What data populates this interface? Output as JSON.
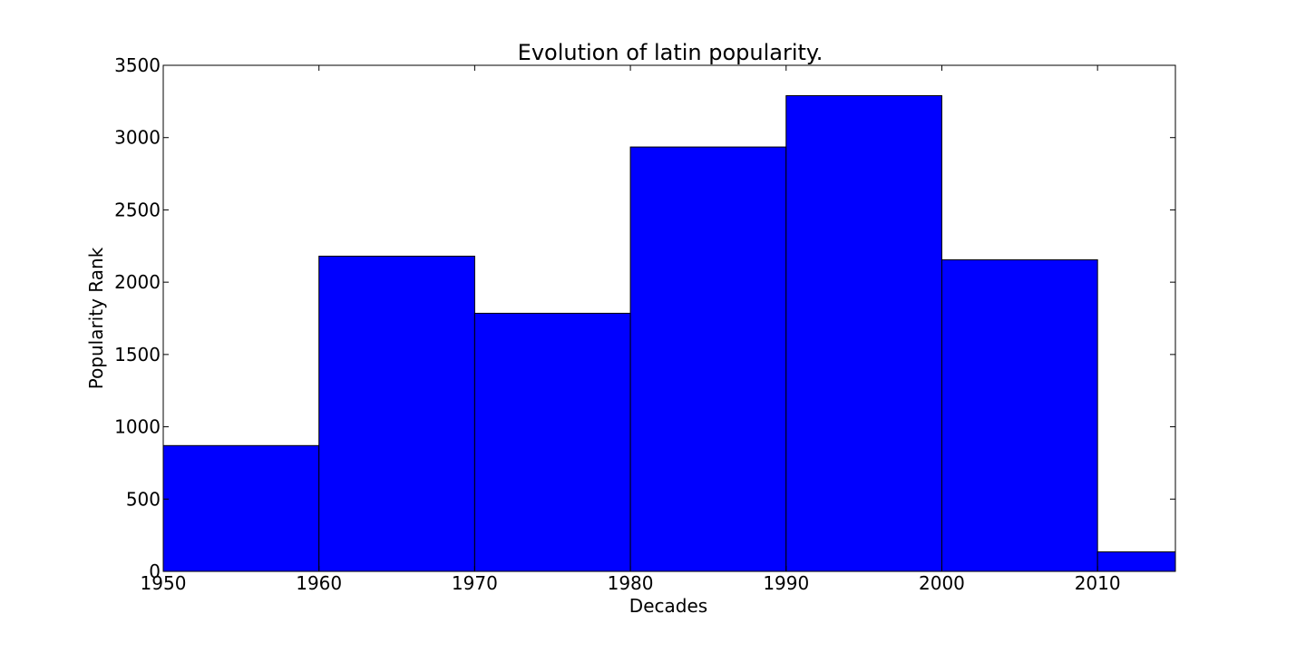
{
  "chart_data": {
    "type": "bar",
    "title": "Evolution of latin popularity.",
    "xlabel": "Decades",
    "ylabel": "Popularity Rank",
    "bins": [
      {
        "start": 1950,
        "end": 1960,
        "value": 870
      },
      {
        "start": 1960,
        "end": 1970,
        "value": 2180
      },
      {
        "start": 1970,
        "end": 1980,
        "value": 1785
      },
      {
        "start": 1980,
        "end": 1990,
        "value": 2935
      },
      {
        "start": 1990,
        "end": 2000,
        "value": 3290
      },
      {
        "start": 2000,
        "end": 2010,
        "value": 2155
      },
      {
        "start": 2010,
        "end": 2015,
        "value": 135
      }
    ],
    "xlim": [
      1950,
      2015
    ],
    "ylim": [
      0,
      3500
    ],
    "xticks": [
      "1950",
      "1960",
      "1970",
      "1980",
      "1990",
      "2000",
      "2010"
    ],
    "yticks": [
      "0",
      "500",
      "1000",
      "1500",
      "2000",
      "2500",
      "3000",
      "3500"
    ],
    "bar_color": "#0000ff",
    "edge_color": "#000000",
    "grid": false,
    "legend": "none"
  }
}
